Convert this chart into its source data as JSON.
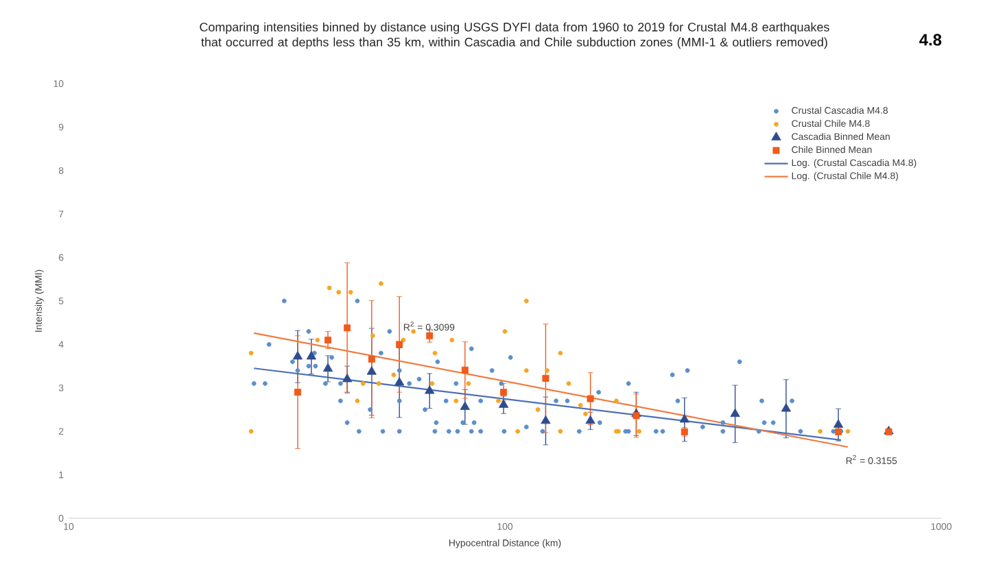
{
  "chart_data": {
    "type": "scatter",
    "title": "Comparing intensities binned by distance using USGS DYFI data from 1960 to 2019 for Crustal M4.8 earthquakes that occurred at depths less than 35 km, within Cascadia and Chile subduction zones (MMI-1 & outliers removed)",
    "xlabel": "Hypocentral Distance (km)",
    "ylabel": "Intensity (MMI)",
    "log": "x",
    "xlim": [
      10,
      1000
    ],
    "xticks": [
      10,
      100,
      1000
    ],
    "ylim": [
      0,
      10
    ],
    "yticks": [
      0,
      1,
      2,
      3,
      4,
      5,
      6,
      7,
      8,
      9,
      10
    ],
    "legend": "top right",
    "annotations": [
      "4.8",
      {
        "text": "R$^{2}$ = 0.3099",
        "x": 67,
        "y": 4.42
      },
      "R$^{2}$ = 0.3155"
    ],
    "series": [
      {
        "name": "Crustal Cascadia M4.8",
        "type": "scatter",
        "marker": "circle",
        "color": "#5b8fc9",
        "x": [
          31.2,
          26.6,
          28.2,
          28.8,
          35.5,
          32.6,
          33.5,
          35.5,
          36.8,
          38.8,
          40.1,
          42,
          36.6,
          45.9,
          42,
          46.3,
          43.5,
          52.5,
          49.1,
          52,
          54.4,
          57.3,
          57.3,
          57.3,
          60.4,
          63.6,
          65.6,
          69.1,
          69.6,
          70.1,
          73.3,
          77.3,
          74.4,
          77.9,
          80.1,
          83.8,
          85,
          83.8,
          88,
          88,
          93.4,
          98.1,
          103,
          99.6,
          112,
          122,
          131,
          139,
          148,
          164,
          165,
          192,
          192,
          189,
          222,
          230,
          242,
          262,
          249,
          284,
          316,
          316,
          345,
          382,
          388,
          393,
          412,
          455,
          476,
          566,
          589
        ],
        "values": [
          5.0,
          3.1,
          3.1,
          4.0,
          4.3,
          3.6,
          3.4,
          3.5,
          3.5,
          3.1,
          3.7,
          2.7,
          3.8,
          5.0,
          3.1,
          2.0,
          2.2,
          2.0,
          2.5,
          3.8,
          4.3,
          3.4,
          2.0,
          2.7,
          3.1,
          3.2,
          2.5,
          2.0,
          2.2,
          3.6,
          2.7,
          3.1,
          2.0,
          2.0,
          2.2,
          3.9,
          2.2,
          2.0,
          2.0,
          2.7,
          3.4,
          3.1,
          3.7,
          2.0,
          2.1,
          2.0,
          2.7,
          2.7,
          2.0,
          2.9,
          2.2,
          3.1,
          2.0,
          2.0,
          2.0,
          2.0,
          3.3,
          3.4,
          2.7,
          2.1,
          2.2,
          2.0,
          3.6,
          2.0,
          2.7,
          2.2,
          2.2,
          2.7,
          2.0,
          2.0,
          2.0
        ]
      },
      {
        "name": "Crustal Chile M4.8",
        "type": "scatter",
        "marker": "circle",
        "color": "#f5a623",
        "x": [
          26.2,
          26.2,
          37.2,
          39.6,
          41.6,
          44.3,
          52,
          49.8,
          47.3,
          45.9,
          51.4,
          58.5,
          61.7,
          55.6,
          68.1,
          69.1,
          75.6,
          77.3,
          82.5,
          100,
          96.6,
          112,
          112,
          107,
          119,
          125,
          134,
          134,
          140,
          149,
          153,
          180,
          180,
          182,
          203,
          528,
          611
        ],
        "values": [
          3.8,
          2.0,
          4.1,
          5.3,
          5.2,
          5.2,
          5.4,
          4.2,
          3.1,
          2.7,
          3.1,
          4.1,
          4.3,
          3.3,
          3.1,
          3.8,
          4.1,
          2.7,
          3.1,
          4.3,
          2.7,
          5.0,
          3.4,
          2.0,
          2.5,
          3.4,
          2.0,
          3.8,
          3.1,
          2.6,
          2.4,
          2.0,
          2.7,
          2.0,
          2.0,
          2.0,
          2.0
        ]
      },
      {
        "name": "Cascadia Binned Mean",
        "type": "scatter",
        "marker": "triangle",
        "color": "#2e4d8f",
        "x": [
          33.5,
          36,
          39.3,
          43.5,
          49.5,
          57.3,
          67.2,
          81,
          99.3,
          124,
          157,
          200,
          258,
          337,
          441,
          581,
          758
        ],
        "values": [
          3.72,
          3.72,
          3.44,
          3.2,
          3.37,
          3.12,
          2.93,
          2.56,
          2.61,
          2.24,
          2.24,
          2.4,
          2.27,
          2.4,
          2.52,
          2.15,
          2.0
        ],
        "errors": [
          0.6,
          0.4,
          0.3,
          0.3,
          1.0,
          0.8,
          0.4,
          0.4,
          0.2,
          0.55,
          0.2,
          0.5,
          0.5,
          0.66,
          0.67,
          0.37,
          null
        ]
      },
      {
        "name": "Chile Binned Mean",
        "type": "scatter",
        "marker": "square",
        "color": "#f05a1a",
        "x": [
          33.5,
          39.3,
          43.5,
          49.5,
          57.3,
          67.2,
          81,
          99.3,
          124,
          157,
          200,
          258,
          581,
          758
        ],
        "values": [
          2.9,
          4.1,
          4.38,
          3.66,
          4.0,
          4.2,
          3.41,
          2.9,
          3.22,
          2.75,
          2.36,
          1.99,
          1.99,
          1.99
        ],
        "errors": [
          1.3,
          0.2,
          1.5,
          1.35,
          1.1,
          0.15,
          0.65,
          0.2,
          1.25,
          0.6,
          0.5,
          0.1,
          null,
          null
        ]
      },
      {
        "name": "Log. (Crustal Cascadia M4.8)",
        "type": "line",
        "marker": "none",
        "line_style": "solid",
        "color": "#4a6fb5",
        "x": [
          26.6,
          589
        ],
        "values": [
          3.45,
          1.8
        ]
      },
      {
        "name": "Log. (Crustal Chile M4.8)",
        "type": "line",
        "marker": "none",
        "line_style": "solid",
        "color": "#f07b3f",
        "x": [
          26.6,
          611
        ],
        "values": [
          4.26,
          1.64
        ]
      }
    ]
  }
}
